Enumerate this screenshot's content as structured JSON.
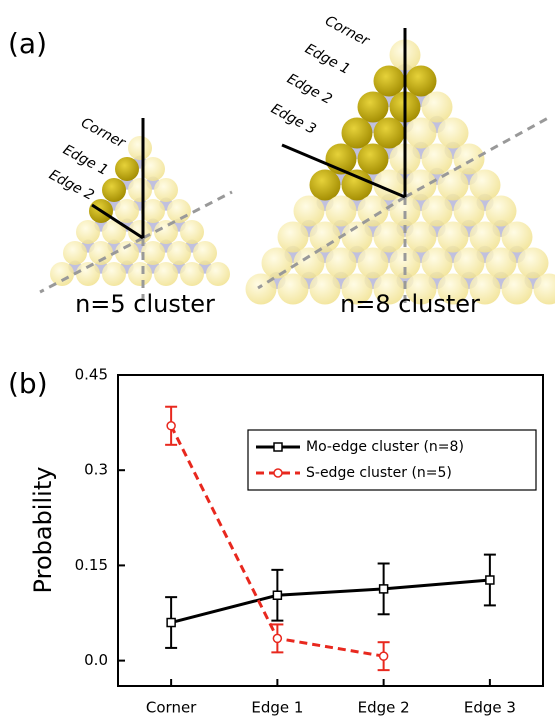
{
  "panel_labels": [
    "(a)",
    "(b)"
  ],
  "panel_a": {
    "small_cluster": {
      "caption": "n=5 cluster",
      "labels": [
        "Corner",
        "Edge 1",
        "Edge 2"
      ]
    },
    "large_cluster": {
      "caption": "n=8 cluster",
      "labels": [
        "Corner",
        "Edge 1",
        "Edge 2",
        "Edge 3"
      ]
    }
  },
  "chart_data": {
    "type": "line",
    "y_label": "Probability",
    "categories": [
      "Corner",
      "Edge 1",
      "Edge 2",
      "Edge 3"
    ],
    "series": [
      {
        "name": "Mo-edge cluster (n=8)",
        "color": "#000000",
        "marker": "square",
        "line_style": "solid",
        "values": [
          0.06,
          0.103,
          0.113,
          0.127
        ],
        "errors": [
          0.04,
          0.04,
          0.04,
          0.04
        ]
      },
      {
        "name": "S-edge cluster (n=5)",
        "color": "#e8281e",
        "marker": "circle",
        "line_style": "dashed",
        "values": [
          0.37,
          0.035,
          0.007,
          null
        ],
        "errors": [
          0.03,
          0.022,
          0.022,
          null
        ]
      }
    ],
    "ylim": [
      -0.04,
      0.45
    ],
    "yticks": [
      {
        "value": 0,
        "label": "0.0"
      },
      0.15,
      0.3,
      0.45
    ],
    "legend": "upper right",
    "grid": false
  }
}
